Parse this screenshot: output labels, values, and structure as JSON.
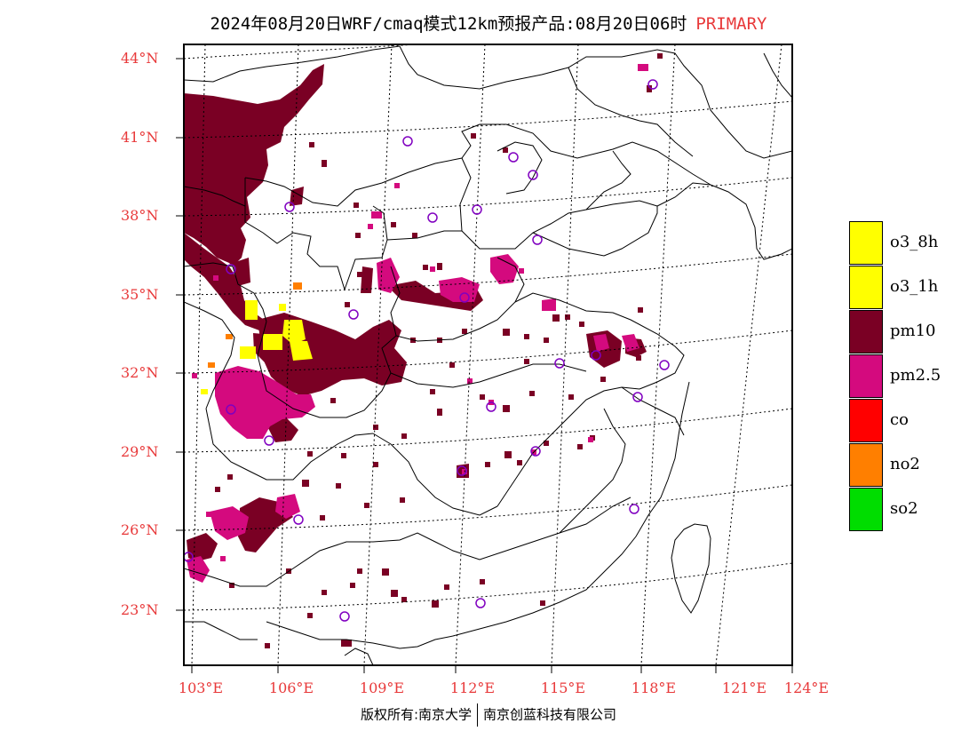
{
  "title": {
    "main": "2024年08月20日WRF/cmaq模式12km预报产品:08月20日06时",
    "tag": "PRIMARY"
  },
  "axes": {
    "lat_labels": [
      "44°N",
      "41°N",
      "38°N",
      "35°N",
      "32°N",
      "29°N",
      "26°N",
      "23°N"
    ],
    "lon_labels": [
      "103°E",
      "106°E",
      "109°E",
      "112°E",
      "115°E",
      "118°E",
      "121°E",
      "124°E"
    ]
  },
  "legend": [
    {
      "label": "o3_8h",
      "color": "#ffff00"
    },
    {
      "label": "o3_1h",
      "color": "#ffff00"
    },
    {
      "label": "pm10",
      "color": "#7a0024"
    },
    {
      "label": "pm2.5",
      "color": "#d40a7e"
    },
    {
      "label": "co",
      "color": "#ff0000"
    },
    {
      "label": "no2",
      "color": "#ff7f00"
    },
    {
      "label": "so2",
      "color": "#00dd00"
    }
  ],
  "colors": {
    "pm10": "#7a0024",
    "pm25": "#d40a7e",
    "o3": "#ffff00",
    "no2": "#ff7f00",
    "station": "#8000c0",
    "label": "#e8393a"
  },
  "footer": {
    "left": "版权所有:南京大学",
    "right": "南京创蓝科技有限公司"
  }
}
